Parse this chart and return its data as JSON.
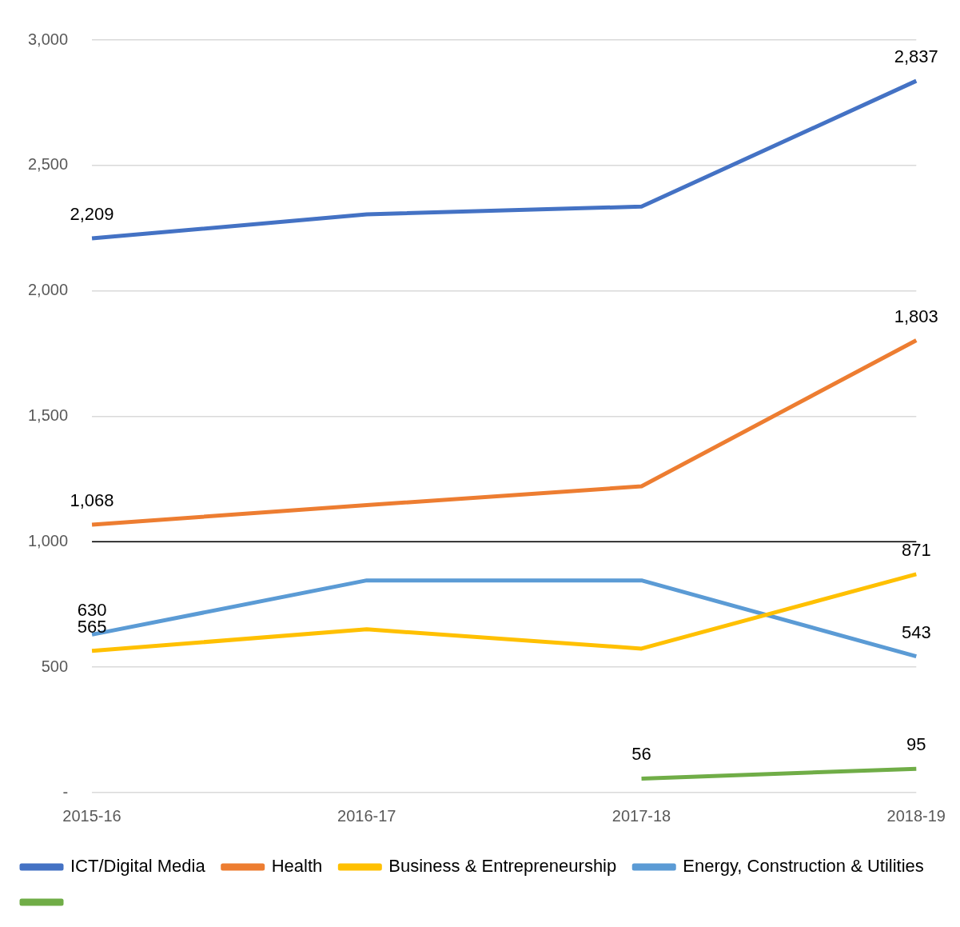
{
  "chart_data": {
    "type": "line",
    "categories": [
      "2015-16",
      "2016-17",
      "2017-18",
      "2018-19"
    ],
    "series": [
      {
        "name": "ICT/Digital Media",
        "color": "#4472c4",
        "values": [
          2209,
          2305,
          2336,
          2837
        ],
        "value_labels": [
          "2,209",
          null,
          null,
          "2,837"
        ]
      },
      {
        "name": "Health",
        "color": "#ed7d31",
        "values": [
          1068,
          1146,
          1221,
          1803
        ],
        "value_labels": [
          "1,068",
          null,
          null,
          "1,803"
        ]
      },
      {
        "name": "Business & Entrepreneurship",
        "color": "#ffc000",
        "values": [
          565,
          651,
          574,
          871
        ],
        "value_labels": [
          "565",
          null,
          null,
          "871"
        ]
      },
      {
        "name": "Energy, Construction & Utilities",
        "color": "#5b9bd5",
        "values": [
          630,
          846,
          846,
          543
        ],
        "value_labels": [
          "630",
          null,
          null,
          "543"
        ]
      },
      {
        "color": "#70ad47",
        "values": [
          null,
          null,
          56,
          95
        ],
        "value_labels": [
          null,
          null,
          "56",
          "95"
        ]
      }
    ],
    "ylim": [
      0,
      3000
    ],
    "yticks": [
      {
        "value": 0,
        "label": "-"
      },
      500,
      {
        "value": 1000,
        "label": "1,000"
      },
      {
        "value": 1500,
        "label": "1,500"
      },
      {
        "value": 2000,
        "label": "2,000"
      },
      {
        "value": 2500,
        "label": "2,500"
      },
      {
        "value": 3000,
        "label": "3,000"
      }
    ],
    "grid": "y",
    "legend": "bottom",
    "marker": "none",
    "line_style": "solid",
    "ref_lines": [
      {
        "axis": "y",
        "value": 1000,
        "color": "#000000"
      }
    ]
  }
}
